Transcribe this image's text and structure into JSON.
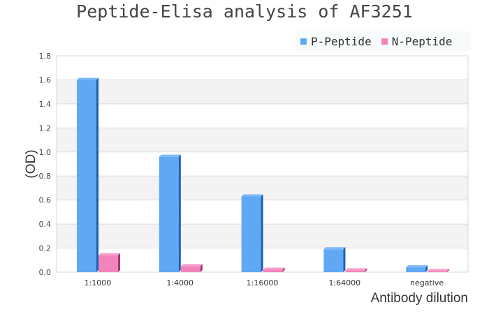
{
  "chart_data": {
    "type": "bar",
    "title": "Peptide-Elisa analysis of AF3251",
    "xlabel": "Antibody dilution",
    "ylabel": "(OD)",
    "categories": [
      "1:1000",
      "1:4000",
      "1:16000",
      "1:64000",
      "negative"
    ],
    "series": [
      {
        "name": "P-Peptide",
        "color": "#61a8f4",
        "values": [
          1.6,
          0.96,
          0.63,
          0.19,
          0.04
        ]
      },
      {
        "name": "N-Peptide",
        "color": "#f185bb",
        "values": [
          0.14,
          0.05,
          0.02,
          0.015,
          0.01
        ]
      }
    ],
    "ylim": [
      0,
      1.8
    ],
    "yticks": [
      "0.0",
      "0.2",
      "0.4",
      "0.6",
      "0.8",
      "1.0",
      "1.2",
      "1.4",
      "1.6",
      "1.8"
    ],
    "grid": true,
    "legend": "top-right"
  }
}
